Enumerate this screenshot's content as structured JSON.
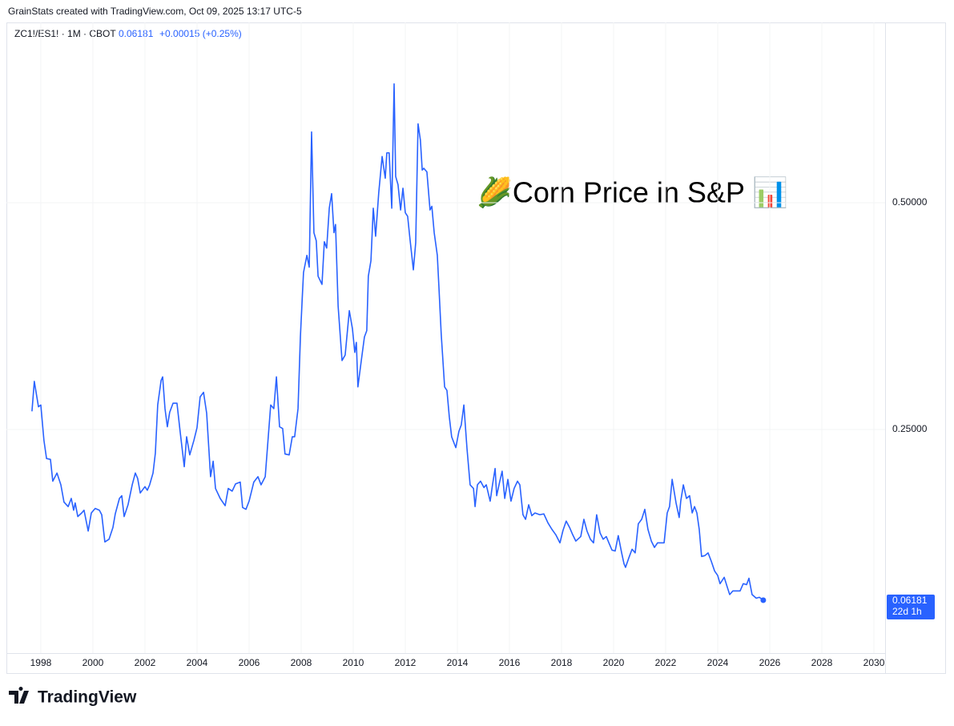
{
  "header": {
    "attribution": "GrainStats created with TradingView.com, Oct 09, 2025 13:17 UTC-5",
    "symbol": "ZC1!/ES1! · 1M · CBOT",
    "change": "+0.00015 (+0.25%)"
  },
  "chart_data": {
    "type": "line",
    "annotation": "🌽Corn Price in S&P 📊",
    "color": "#2962ff",
    "grid": true,
    "countdown": "22d 1h",
    "x": [
      1997.66,
      1997.75,
      1997.91,
      1998.0,
      1998.12,
      1998.22,
      1998.37,
      1998.46,
      1998.62,
      1998.77,
      1998.89,
      1999.05,
      1999.17,
      1999.26,
      1999.32,
      1999.42,
      1999.57,
      1999.66,
      1999.82,
      1999.94,
      2000.09,
      2000.25,
      2000.34,
      2000.46,
      2000.62,
      2000.77,
      2000.86,
      2001.02,
      2001.11,
      2001.2,
      2001.35,
      2001.51,
      2001.63,
      2001.72,
      2001.82,
      2002.0,
      2002.09,
      2002.18,
      2002.31,
      2002.4,
      2002.49,
      2002.62,
      2002.68,
      2002.77,
      2002.86,
      2002.95,
      2003.08,
      2003.23,
      2003.35,
      2003.51,
      2003.6,
      2003.72,
      2003.88,
      2004.0,
      2004.12,
      2004.25,
      2004.37,
      2004.52,
      2004.62,
      2004.71,
      2004.89,
      2005.08,
      2005.2,
      2005.35,
      2005.48,
      2005.66,
      2005.75,
      2005.88,
      2006.0,
      2006.18,
      2006.34,
      2006.46,
      2006.62,
      2006.83,
      2006.95,
      2007.05,
      2007.17,
      2007.29,
      2007.38,
      2007.54,
      2007.66,
      2007.75,
      2007.88,
      2007.97,
      2008.09,
      2008.22,
      2008.31,
      2008.4,
      2008.49,
      2008.58,
      2008.65,
      2008.8,
      2008.89,
      2008.98,
      2009.08,
      2009.17,
      2009.26,
      2009.32,
      2009.42,
      2009.57,
      2009.69,
      2009.85,
      2009.97,
      2010.06,
      2010.12,
      2010.18,
      2010.31,
      2010.43,
      2010.52,
      2010.58,
      2010.68,
      2010.77,
      2010.86,
      2010.98,
      2011.11,
      2011.23,
      2011.29,
      2011.38,
      2011.48,
      2011.57,
      2011.63,
      2011.72,
      2011.82,
      2011.91,
      2012.0,
      2012.09,
      2012.18,
      2012.31,
      2012.4,
      2012.49,
      2012.58,
      2012.65,
      2012.71,
      2012.83,
      2012.95,
      2013.02,
      2013.11,
      2013.23,
      2013.29,
      2013.38,
      2013.51,
      2013.6,
      2013.69,
      2013.78,
      2013.94,
      2014.06,
      2014.15,
      2014.25,
      2014.37,
      2014.49,
      2014.62,
      2014.68,
      2014.77,
      2014.89,
      2015.02,
      2015.11,
      2015.26,
      2015.35,
      2015.45,
      2015.51,
      2015.63,
      2015.72,
      2015.82,
      2015.94,
      2016.06,
      2016.18,
      2016.31,
      2016.4,
      2016.52,
      2016.62,
      2016.74,
      2016.86,
      2016.98,
      2017.17,
      2017.32,
      2017.48,
      2017.63,
      2017.78,
      2017.94,
      2018.06,
      2018.18,
      2018.31,
      2018.43,
      2018.55,
      2018.74,
      2018.86,
      2018.98,
      2019.11,
      2019.23,
      2019.35,
      2019.48,
      2019.6,
      2019.72,
      2019.82,
      2019.94,
      2020.06,
      2020.18,
      2020.31,
      2020.4,
      2020.46,
      2020.58,
      2020.71,
      2020.83,
      2020.95,
      2021.08,
      2021.2,
      2021.32,
      2021.45,
      2021.57,
      2021.69,
      2021.82,
      2021.94,
      2022.06,
      2022.15,
      2022.25,
      2022.4,
      2022.52,
      2022.58,
      2022.68,
      2022.8,
      2022.92,
      2023.02,
      2023.11,
      2023.2,
      2023.29,
      2023.38,
      2023.51,
      2023.63,
      2023.75,
      2023.88,
      2024.0,
      2024.09,
      2024.25,
      2024.37,
      2024.46,
      2024.58,
      2024.74,
      2024.86,
      2024.98,
      2025.11,
      2025.2,
      2025.32,
      2025.48,
      2025.6,
      2025.75
    ],
    "values": [
      0.27,
      0.303,
      0.275,
      0.277,
      0.238,
      0.218,
      0.217,
      0.193,
      0.202,
      0.189,
      0.17,
      0.165,
      0.174,
      0.161,
      0.169,
      0.154,
      0.158,
      0.161,
      0.138,
      0.158,
      0.163,
      0.161,
      0.156,
      0.126,
      0.129,
      0.142,
      0.157,
      0.174,
      0.177,
      0.154,
      0.167,
      0.189,
      0.202,
      0.196,
      0.18,
      0.187,
      0.183,
      0.189,
      0.202,
      0.224,
      0.277,
      0.304,
      0.308,
      0.273,
      0.253,
      0.269,
      0.279,
      0.279,
      0.248,
      0.209,
      0.242,
      0.222,
      0.238,
      0.252,
      0.286,
      0.291,
      0.268,
      0.198,
      0.215,
      0.185,
      0.174,
      0.166,
      0.185,
      0.182,
      0.19,
      0.192,
      0.164,
      0.162,
      0.171,
      0.192,
      0.198,
      0.189,
      0.198,
      0.277,
      0.273,
      0.308,
      0.253,
      0.251,
      0.223,
      0.222,
      0.242,
      0.242,
      0.273,
      0.352,
      0.423,
      0.442,
      0.429,
      0.578,
      0.467,
      0.458,
      0.419,
      0.41,
      0.457,
      0.45,
      0.494,
      0.51,
      0.467,
      0.476,
      0.386,
      0.326,
      0.332,
      0.381,
      0.361,
      0.335,
      0.346,
      0.297,
      0.326,
      0.352,
      0.359,
      0.419,
      0.436,
      0.494,
      0.463,
      0.511,
      0.551,
      0.527,
      0.555,
      0.555,
      0.494,
      0.631,
      0.529,
      0.52,
      0.492,
      0.516,
      0.489,
      0.485,
      0.46,
      0.426,
      0.456,
      0.587,
      0.569,
      0.536,
      0.538,
      0.534,
      0.492,
      0.496,
      0.467,
      0.442,
      0.408,
      0.355,
      0.297,
      0.293,
      0.264,
      0.242,
      0.23,
      0.248,
      0.255,
      0.277,
      0.229,
      0.189,
      0.185,
      0.165,
      0.189,
      0.193,
      0.186,
      0.189,
      0.171,
      0.189,
      0.207,
      0.177,
      0.193,
      0.204,
      0.174,
      0.195,
      0.171,
      0.185,
      0.193,
      0.189,
      0.156,
      0.151,
      0.167,
      0.155,
      0.158,
      0.156,
      0.157,
      0.147,
      0.14,
      0.134,
      0.125,
      0.139,
      0.149,
      0.142,
      0.134,
      0.127,
      0.132,
      0.151,
      0.138,
      0.129,
      0.125,
      0.156,
      0.136,
      0.129,
      0.132,
      0.125,
      0.117,
      0.116,
      0.133,
      0.114,
      0.102,
      0.098,
      0.108,
      0.118,
      0.114,
      0.146,
      0.151,
      0.162,
      0.14,
      0.127,
      0.12,
      0.125,
      0.125,
      0.125,
      0.158,
      0.165,
      0.195,
      0.169,
      0.153,
      0.171,
      0.189,
      0.174,
      0.177,
      0.158,
      0.165,
      0.158,
      0.14,
      0.11,
      0.111,
      0.114,
      0.105,
      0.094,
      0.089,
      0.08,
      0.087,
      0.076,
      0.068,
      0.072,
      0.072,
      0.072,
      0.08,
      0.079,
      0.086,
      0.068,
      0.064,
      0.065,
      0.06181
    ],
    "xlim": [
      1996.74,
      2030.43
    ],
    "ylim": [
      0.0035,
      0.697
    ],
    "xticks": [
      1998,
      2000,
      2002,
      2004,
      2006,
      2008,
      2010,
      2012,
      2014,
      2016,
      2018,
      2020,
      2022,
      2024,
      2026,
      2028,
      2030
    ],
    "yticks": [
      {
        "value": 0.25,
        "label": "0.25000"
      },
      {
        "value": 0.5,
        "label": "0.50000"
      }
    ]
  },
  "footer": {
    "logo": "TradingView"
  }
}
